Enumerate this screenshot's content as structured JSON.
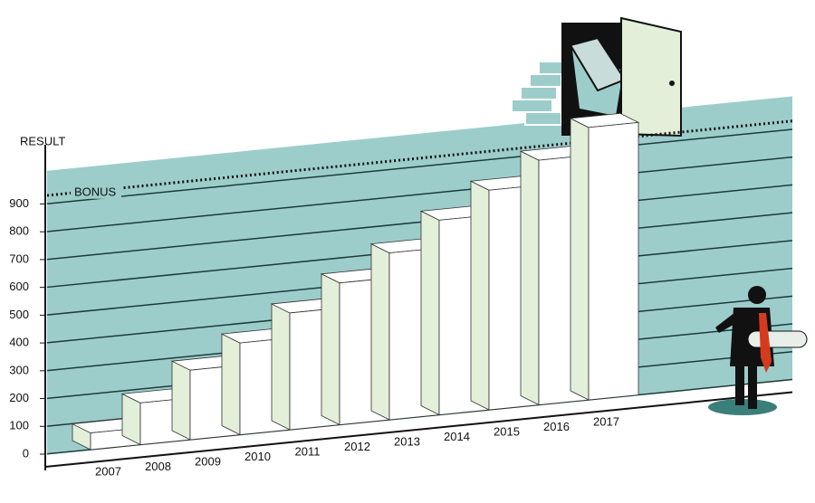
{
  "chart_data": {
    "type": "bar",
    "y_label": "RESULT",
    "categories": [
      "2007",
      "2008",
      "2009",
      "2010",
      "2011",
      "2012",
      "2013",
      "2014",
      "2015",
      "2016",
      "2017"
    ],
    "values": [
      60,
      150,
      250,
      330,
      420,
      510,
      600,
      700,
      790,
      880,
      980
    ],
    "ylim": [
      0,
      1100
    ],
    "yticks": [
      0,
      100,
      200,
      300,
      400,
      500,
      600,
      700,
      800,
      900
    ],
    "grid": true,
    "annotations": [
      {
        "text": "BONUS",
        "value": 930
      }
    ],
    "color": "#ffffff",
    "side_color": "#e3efd9",
    "panel_color": "#9ccdcb"
  }
}
